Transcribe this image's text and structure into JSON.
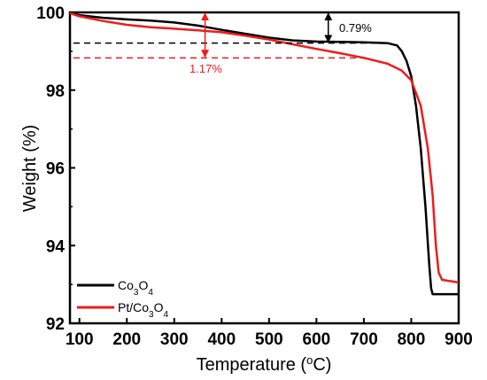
{
  "chart_data": {
    "type": "line",
    "xlabel": "Temperature (",
    "xlabel_sup": "o",
    "xlabel_tail": "C)",
    "ylabel": "Weight (%)",
    "xlim": [
      80,
      900
    ],
    "ylim": [
      92,
      100
    ],
    "x_ticks": [
      100,
      200,
      300,
      400,
      500,
      600,
      700,
      800,
      900
    ],
    "y_ticks": [
      92,
      94,
      96,
      98,
      100
    ],
    "grid": false,
    "legend_position": "bottom-left",
    "series": [
      {
        "name": "Co3O4",
        "legend_parts": [
          [
            "Co",
            ""
          ],
          [
            "3",
            "sub"
          ],
          [
            "O",
            ""
          ],
          [
            "4",
            "sub"
          ]
        ],
        "color": "#000000",
        "points": [
          [
            80,
            99.98
          ],
          [
            100,
            99.93
          ],
          [
            150,
            99.86
          ],
          [
            200,
            99.82
          ],
          [
            250,
            99.79
          ],
          [
            300,
            99.74
          ],
          [
            350,
            99.66
          ],
          [
            400,
            99.55
          ],
          [
            450,
            99.45
          ],
          [
            500,
            99.35
          ],
          [
            550,
            99.28
          ],
          [
            600,
            99.25
          ],
          [
            650,
            99.24
          ],
          [
            700,
            99.23
          ],
          [
            750,
            99.21
          ],
          [
            770,
            99.15
          ],
          [
            780,
            99.0
          ],
          [
            790,
            98.75
          ],
          [
            800,
            98.35
          ],
          [
            810,
            97.6
          ],
          [
            820,
            96.5
          ],
          [
            830,
            95.0
          ],
          [
            838,
            93.5
          ],
          [
            842,
            92.9
          ],
          [
            845,
            92.75
          ],
          [
            870,
            92.75
          ],
          [
            900,
            92.75
          ]
        ]
      },
      {
        "name": "Pt/Co3O4",
        "legend_parts": [
          [
            "Pt/Co",
            ""
          ],
          [
            "3",
            "sub"
          ],
          [
            "O",
            ""
          ],
          [
            "4",
            "sub"
          ]
        ],
        "color": "#ee1c1c",
        "points": [
          [
            80,
            99.98
          ],
          [
            100,
            99.9
          ],
          [
            150,
            99.78
          ],
          [
            200,
            99.68
          ],
          [
            250,
            99.62
          ],
          [
            300,
            99.58
          ],
          [
            350,
            99.54
          ],
          [
            400,
            99.49
          ],
          [
            450,
            99.4
          ],
          [
            500,
            99.3
          ],
          [
            550,
            99.18
          ],
          [
            600,
            99.06
          ],
          [
            650,
            98.95
          ],
          [
            700,
            98.83
          ],
          [
            750,
            98.68
          ],
          [
            780,
            98.5
          ],
          [
            800,
            98.25
          ],
          [
            820,
            97.6
          ],
          [
            835,
            96.5
          ],
          [
            845,
            95.3
          ],
          [
            852,
            94.0
          ],
          [
            858,
            93.3
          ],
          [
            865,
            93.12
          ],
          [
            900,
            93.05
          ]
        ]
      }
    ],
    "annotations": [
      {
        "label": "0.79%",
        "color": "#000000"
      },
      {
        "label": "1.17%",
        "color": "#ee1c1c"
      }
    ]
  }
}
